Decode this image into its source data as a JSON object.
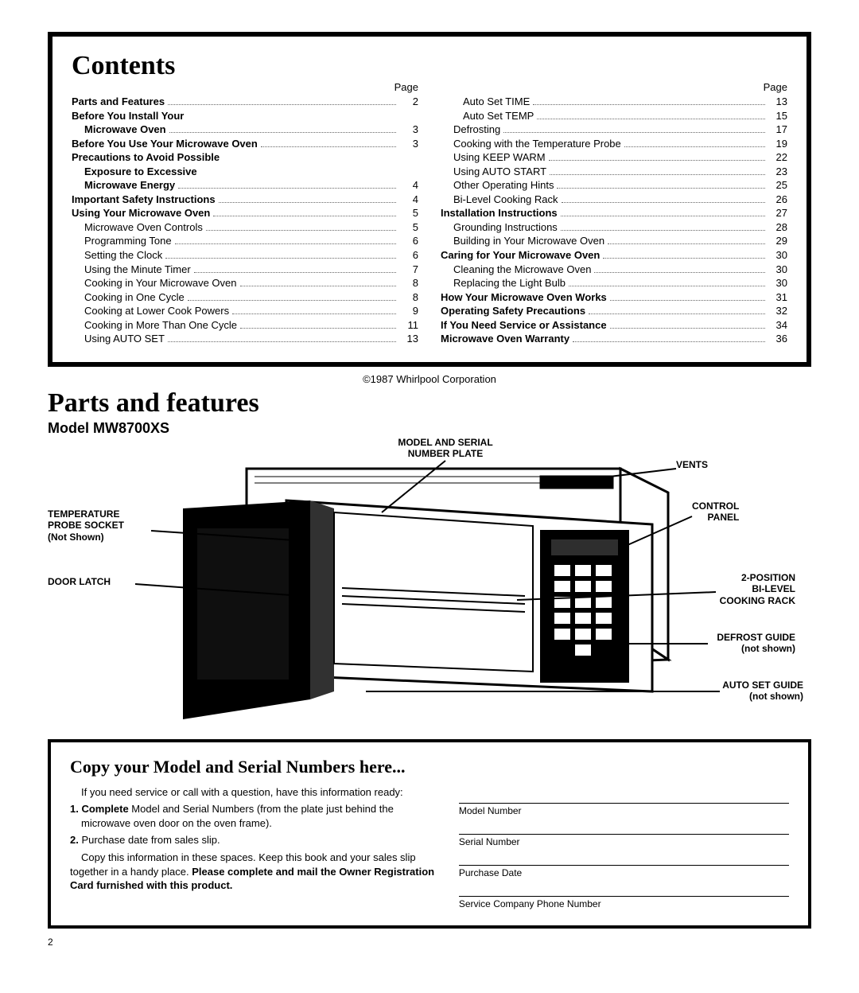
{
  "contents": {
    "title": "Contents",
    "page_label": "Page",
    "col1": [
      {
        "label": "Parts and Features",
        "bold": true,
        "sub": 0,
        "page": "2"
      },
      {
        "label": "Before You Install Your",
        "bold": true,
        "sub": 0,
        "page": ""
      },
      {
        "label": "Microwave Oven",
        "bold": true,
        "sub": 1,
        "page": "3"
      },
      {
        "label": "Before You Use Your Microwave Oven",
        "bold": true,
        "sub": 0,
        "page": "3"
      },
      {
        "label": "Precautions to Avoid Possible",
        "bold": true,
        "sub": 0,
        "page": ""
      },
      {
        "label": "Exposure to Excessive",
        "bold": true,
        "sub": 1,
        "page": ""
      },
      {
        "label": "Microwave Energy",
        "bold": true,
        "sub": 1,
        "page": "4"
      },
      {
        "label": "Important Safety Instructions",
        "bold": true,
        "sub": 0,
        "page": "4"
      },
      {
        "label": "Using Your Microwave Oven",
        "bold": true,
        "sub": 0,
        "page": "5"
      },
      {
        "label": "Microwave Oven Controls",
        "bold": false,
        "sub": 1,
        "page": "5"
      },
      {
        "label": "Programming Tone",
        "bold": false,
        "sub": 1,
        "page": "6"
      },
      {
        "label": "Setting the Clock",
        "bold": false,
        "sub": 1,
        "page": "6"
      },
      {
        "label": "Using the Minute Timer",
        "bold": false,
        "sub": 1,
        "page": "7"
      },
      {
        "label": "Cooking in Your Microwave Oven",
        "bold": false,
        "sub": 1,
        "page": "8"
      },
      {
        "label": "Cooking in One Cycle",
        "bold": false,
        "sub": 1,
        "page": "8"
      },
      {
        "label": "Cooking at Lower Cook Powers",
        "bold": false,
        "sub": 1,
        "page": "9"
      },
      {
        "label": "Cooking in More Than One Cycle",
        "bold": false,
        "sub": 1,
        "page": "11"
      },
      {
        "label": "Using AUTO SET",
        "bold": false,
        "sub": 1,
        "page": "13"
      }
    ],
    "col2": [
      {
        "label": "Auto Set TIME",
        "bold": false,
        "sub": 2,
        "page": "13"
      },
      {
        "label": "Auto Set TEMP",
        "bold": false,
        "sub": 2,
        "page": "15"
      },
      {
        "label": "Defrosting",
        "bold": false,
        "sub": 1,
        "page": "17"
      },
      {
        "label": "Cooking with the Temperature Probe",
        "bold": false,
        "sub": 1,
        "page": "19"
      },
      {
        "label": "Using KEEP WARM",
        "bold": false,
        "sub": 1,
        "page": "22"
      },
      {
        "label": "Using AUTO START",
        "bold": false,
        "sub": 1,
        "page": "23"
      },
      {
        "label": "Other Operating Hints",
        "bold": false,
        "sub": 1,
        "page": "25"
      },
      {
        "label": "Bi-Level Cooking Rack",
        "bold": false,
        "sub": 1,
        "page": "26"
      },
      {
        "label": "Installation Instructions",
        "bold": true,
        "sub": 0,
        "page": "27"
      },
      {
        "label": "Grounding Instructions",
        "bold": false,
        "sub": 1,
        "page": "28"
      },
      {
        "label": "Building in Your Microwave Oven",
        "bold": false,
        "sub": 1,
        "page": "29"
      },
      {
        "label": "Caring for Your Microwave Oven",
        "bold": true,
        "sub": 0,
        "page": "30"
      },
      {
        "label": "Cleaning the Microwave Oven",
        "bold": false,
        "sub": 1,
        "page": "30"
      },
      {
        "label": "Replacing the Light Bulb",
        "bold": false,
        "sub": 1,
        "page": "30"
      },
      {
        "label": "How Your Microwave Oven Works",
        "bold": true,
        "sub": 0,
        "page": "31"
      },
      {
        "label": "Operating Safety Precautions",
        "bold": true,
        "sub": 0,
        "page": "32"
      },
      {
        "label": "If You Need Service or Assistance",
        "bold": true,
        "sub": 0,
        "page": "34"
      },
      {
        "label": "Microwave Oven Warranty",
        "bold": true,
        "sub": 0,
        "page": "36"
      }
    ]
  },
  "copyright": "©1987 Whirlpool Corporation",
  "parts": {
    "title": "Parts and features",
    "model": "Model MW8700XS",
    "callouts": {
      "temp_probe": "TEMPERATURE\nPROBE SOCKET\n(Not Shown)",
      "door_latch": "DOOR LATCH",
      "model_plate": "MODEL AND SERIAL\nNUMBER PLATE",
      "vents": "VENTS",
      "control_panel": "CONTROL\nPANEL",
      "bilevel": "2-POSITION\nBI-LEVEL\nCOOKING RACK",
      "defrost": "DEFROST GUIDE\n(not shown)",
      "autoset": "AUTO SET GUIDE\n(not shown)"
    }
  },
  "copybox": {
    "title": "Copy your Model and Serial Numbers here...",
    "p1": "If you need service or call with a question, have this information ready:",
    "li1a": "1. Complete",
    "li1b": " Model and Serial Numbers (from the plate just behind the microwave oven door on the oven frame).",
    "li2a": "2.",
    "li2b": " Purchase date from sales slip.",
    "p2a": "Copy this information in these spaces. Keep this book and your sales slip together in a handy place. ",
    "p2b": "Please complete and mail the Owner Registration Card furnished with this product.",
    "fields": {
      "model": "Model Number",
      "serial": "Serial Number",
      "purchase": "Purchase Date",
      "service": "Service Company Phone Number"
    }
  },
  "page_number": "2"
}
